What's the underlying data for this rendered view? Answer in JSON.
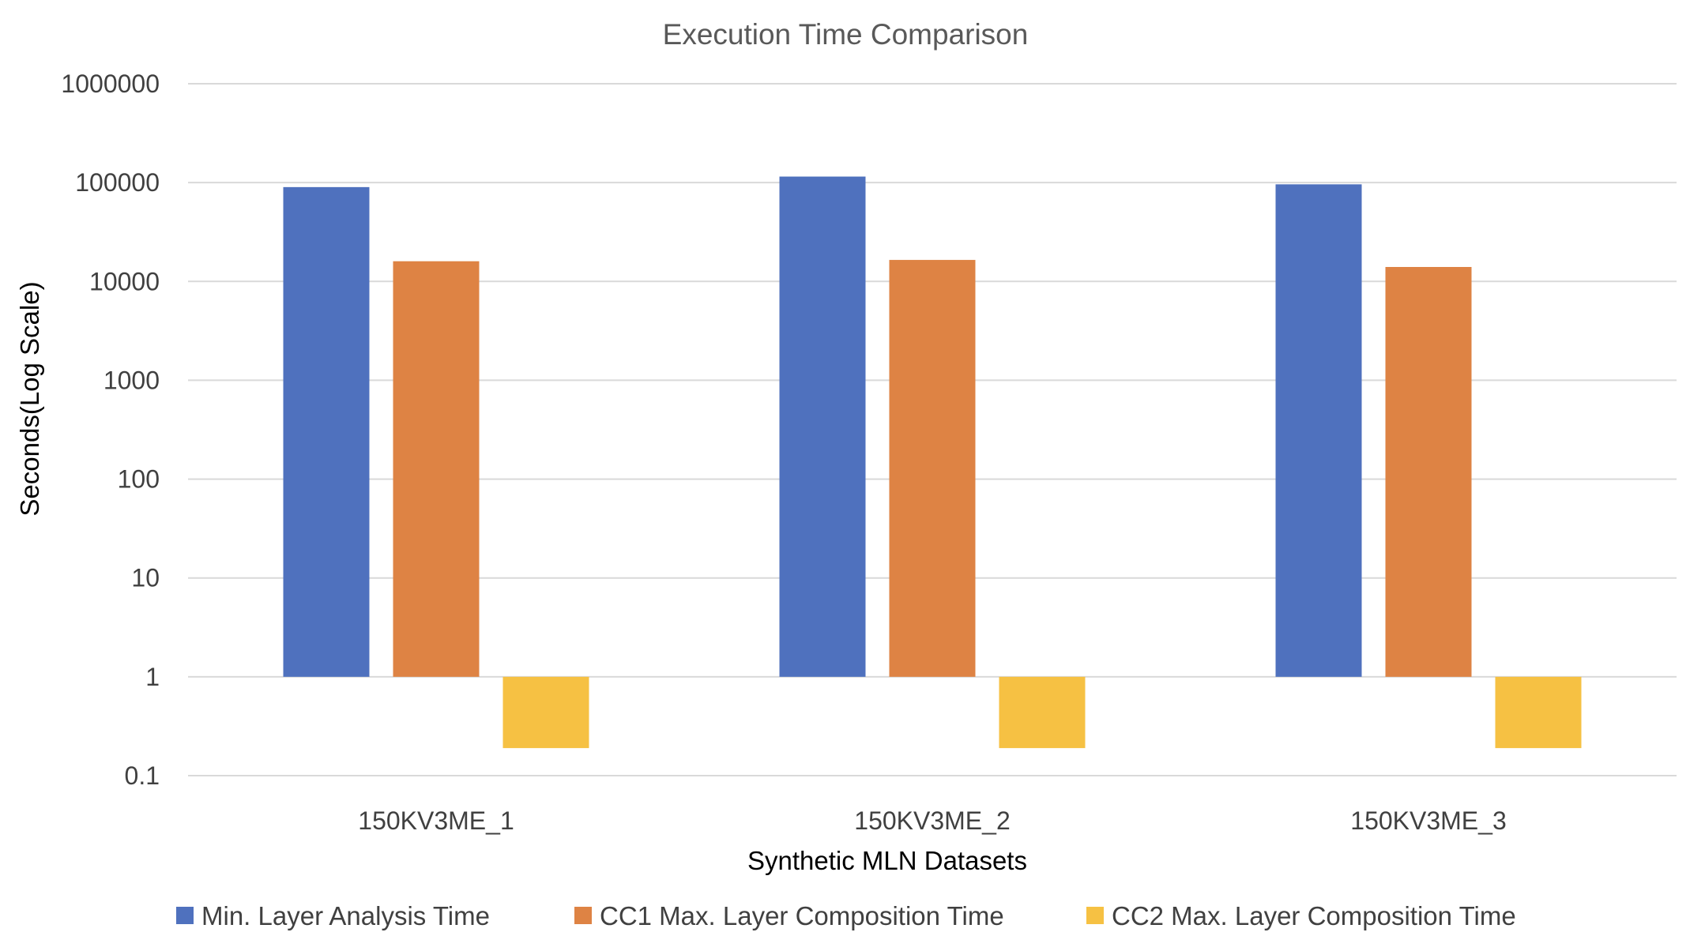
{
  "chart_data": {
    "type": "bar",
    "title": "Execution Time Comparison",
    "xlabel": "Synthetic MLN Datasets",
    "ylabel": "Seconds(Log Scale)",
    "yscale": "log",
    "ylim": [
      0.1,
      1000000
    ],
    "yticks": [
      {
        "value": 1000000,
        "label": "1000000"
      },
      {
        "value": 100000,
        "label": "100000"
      },
      {
        "value": 10000,
        "label": "10000"
      },
      {
        "value": 1000,
        "label": "1000"
      },
      {
        "value": 100,
        "label": "100"
      },
      {
        "value": 10,
        "label": "10"
      },
      {
        "value": 1,
        "label": "1"
      },
      {
        "value": 0.1,
        "label": "0.1"
      }
    ],
    "bar_baseline": 1,
    "categories": [
      "150KV3ME_1",
      "150KV3ME_2",
      "150KV3ME_3"
    ],
    "series": [
      {
        "name": "Min. Layer Analysis Time",
        "color": "#4f71be",
        "values": [
          90000,
          115000,
          96000
        ]
      },
      {
        "name": "CC1 Max. Layer Composition Time",
        "color": "#de8344",
        "values": [
          16000,
          16500,
          14000
        ]
      },
      {
        "name": "CC2 Max. Layer Composition Time",
        "color": "#f6c143",
        "values": [
          0.19,
          0.19,
          0.19
        ]
      }
    ],
    "legend_position": "bottom",
    "grid": true
  }
}
